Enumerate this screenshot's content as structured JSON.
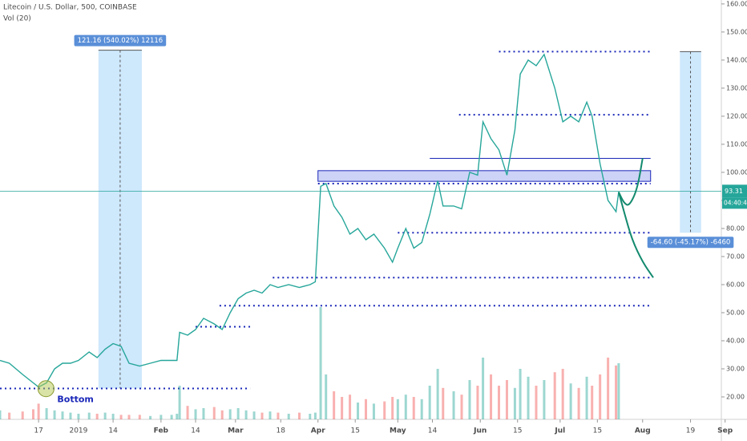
{
  "chart_data": {
    "type": "line",
    "title": "Litecoin / U.S. Dollar, 500, COINBASE",
    "indicator": "Vol (20)",
    "xlim": [
      1.5,
      275.6
    ],
    "ylim": [
      12,
      161.4
    ],
    "xticks": [
      {
        "value": 16,
        "label": "17"
      },
      {
        "value": 31,
        "label": "2019"
      },
      {
        "value": 44,
        "label": "14"
      },
      {
        "value": 62,
        "label": "Feb"
      },
      {
        "value": 75,
        "label": "14"
      },
      {
        "value": 90,
        "label": "Mar"
      },
      {
        "value": 107,
        "label": "18"
      },
      {
        "value": 121,
        "label": "Apr"
      },
      {
        "value": 135,
        "label": "15"
      },
      {
        "value": 151,
        "label": "May"
      },
      {
        "value": 164,
        "label": "14"
      },
      {
        "value": 182,
        "label": "Jun"
      },
      {
        "value": 196,
        "label": "15"
      },
      {
        "value": 212,
        "label": "Jul"
      },
      {
        "value": 226,
        "label": "15"
      },
      {
        "value": 243,
        "label": "Aug"
      },
      {
        "value": 261,
        "label": "19"
      },
      {
        "value": 274,
        "label": "Sep"
      }
    ],
    "yticks": [
      {
        "value": 20,
        "label": "20.00"
      },
      {
        "value": 30,
        "label": "30.00"
      },
      {
        "value": 40,
        "label": "40.00"
      },
      {
        "value": 50,
        "label": "50.00"
      },
      {
        "value": 60,
        "label": "60.00"
      },
      {
        "value": 70,
        "label": "70.00"
      },
      {
        "value": 80,
        "label": "80.00"
      },
      {
        "value": 90,
        "label": "90.00"
      },
      {
        "value": 100,
        "label": "100.00"
      },
      {
        "value": 110,
        "label": "110.00"
      },
      {
        "value": 120,
        "label": "120.00"
      },
      {
        "value": 130,
        "label": "130.00"
      },
      {
        "value": 140,
        "label": "140.00"
      },
      {
        "value": 150,
        "label": "150.00"
      },
      {
        "value": 160,
        "label": "160.00"
      }
    ],
    "series": [
      {
        "color": "#26a69a",
        "x": [
          1.5,
          5,
          10,
          14,
          16,
          19,
          22,
          25,
          28,
          31,
          35,
          38,
          41,
          44,
          47,
          50,
          54,
          58,
          62,
          66,
          68,
          69,
          72,
          75,
          78,
          82,
          85,
          88,
          91,
          94,
          97,
          100,
          103,
          106,
          110,
          114,
          118,
          120,
          122,
          124,
          127,
          130,
          133,
          136,
          139,
          142,
          146,
          149,
          151,
          154,
          157,
          160,
          163,
          166,
          168,
          172,
          175,
          178,
          181,
          183,
          186,
          189,
          192,
          195,
          197,
          200,
          203,
          206,
          210,
          213,
          216,
          219,
          222,
          224,
          227,
          230,
          233,
          234
        ],
        "values": [
          33,
          32,
          28,
          25,
          23.5,
          25,
          30,
          32,
          32,
          33,
          36,
          34,
          37,
          39,
          38,
          32,
          31,
          32,
          33,
          33,
          33,
          43,
          42,
          44,
          48,
          46,
          44,
          50,
          55,
          57,
          58,
          57,
          60,
          59,
          60,
          59,
          60,
          61,
          95,
          96,
          88,
          84,
          78,
          80,
          76,
          78,
          73,
          68,
          73,
          80,
          73,
          75,
          85,
          97,
          88,
          88,
          87,
          100,
          99,
          118,
          112,
          108,
          99,
          115,
          135,
          140,
          138,
          142,
          130,
          118,
          120,
          118,
          125,
          120,
          103,
          90,
          86,
          93
        ],
        "volume": [
          8,
          6,
          7,
          9,
          14,
          10,
          8,
          7,
          6,
          5,
          6,
          5,
          6,
          5,
          4,
          4,
          4,
          3,
          4,
          4,
          5,
          30,
          12,
          9,
          10,
          11,
          8,
          9,
          10,
          8,
          7,
          6,
          7,
          6,
          5,
          6,
          5,
          6,
          100,
          40,
          25,
          20,
          22,
          15,
          18,
          14,
          16,
          20,
          18,
          22,
          20,
          18,
          30,
          45,
          28,
          25,
          22,
          35,
          30,
          55,
          40,
          30,
          35,
          28,
          45,
          38,
          30,
          35,
          42,
          45,
          32,
          28,
          38,
          30,
          40,
          55,
          48,
          50
        ],
        "volume_up_color": "#26a69a",
        "volume_down_color": "#ef5350"
      }
    ],
    "levels": [
      {
        "value": 23,
        "x": [
          1.5,
          95.5
        ]
      },
      {
        "value": 45,
        "x": [
          75,
          95.5
        ]
      },
      {
        "value": 52.5,
        "x": [
          84,
          246
        ]
      },
      {
        "value": 62.5,
        "x": [
          104,
          246
        ]
      },
      {
        "value": 78.5,
        "x": [
          151,
          246
        ]
      },
      {
        "value": 96,
        "x": [
          121,
          246
        ]
      },
      {
        "value": 120.5,
        "x": [
          174,
          246
        ]
      },
      {
        "value": 143,
        "x": [
          189,
          246
        ]
      }
    ],
    "level_color": "#1a27b8",
    "zone": {
      "ylim": [
        96.8,
        100.6
      ],
      "x": [
        121,
        246
      ]
    },
    "resistance": {
      "value": 105,
      "x": [
        163,
        246
      ]
    },
    "current_price": {
      "value": 93.31,
      "countdown": "04:40:40"
    },
    "measures": [
      {
        "x": [
          38.5,
          54.8
        ],
        "ylim": [
          23,
          143.5
        ],
        "label": "121.16 (540.02%) 12116"
      },
      {
        "x": [
          257,
          265
        ],
        "ylim": [
          78.5,
          143
        ],
        "label": "-64.60 (-45.17%) -6460"
      }
    ],
    "annotation": {
      "text": "Bottom",
      "x": 20,
      "value": 23.5
    },
    "projections": [
      {
        "x": [
          234,
          236,
          239,
          243,
          247
        ],
        "values": [
          93,
          86,
          76,
          68,
          62.5
        ]
      },
      {
        "x": [
          234,
          236,
          238,
          241,
          243
        ],
        "values": [
          93,
          89,
          88,
          94,
          105
        ]
      }
    ],
    "projection_color": "#138a6e"
  }
}
